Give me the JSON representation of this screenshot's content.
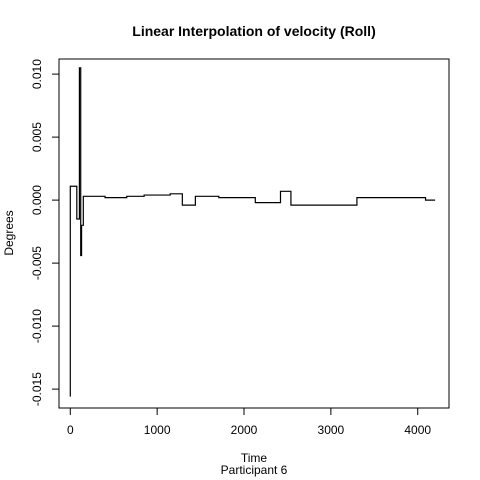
{
  "chart_data": {
    "type": "line",
    "title": "Linear Interpolation of velocity (Roll)",
    "xlabel": "Time",
    "sublabel": "Participant  6",
    "ylabel": "Degrees",
    "xlim": [
      -130,
      4360
    ],
    "ylim": [
      -0.0165,
      0.0112
    ],
    "x_ticks": [
      0,
      1000,
      2000,
      3000,
      4000
    ],
    "x_tick_labels": [
      "0",
      "1000",
      "2000",
      "3000",
      "4000"
    ],
    "y_ticks": [
      -0.015,
      -0.01,
      -0.005,
      0.0,
      0.005,
      0.01
    ],
    "y_tick_labels": [
      "-0.015",
      "-0.010",
      "-0.005",
      "0.000",
      "0.005",
      "0.010"
    ],
    "grid": false,
    "series": [
      {
        "style": "step",
        "color": "#000000",
        "x": [
          0,
          0,
          75,
          75,
          105,
          105,
          120,
          120,
          130,
          130,
          150,
          150,
          400,
          400,
          650,
          650,
          850,
          850,
          1150,
          1150,
          1290,
          1290,
          1440,
          1440,
          1710,
          1710,
          2130,
          2130,
          2420,
          2420,
          2540,
          2540,
          3300,
          3300,
          4090,
          4090,
          4200
        ],
        "y": [
          -0.0156,
          0.0011,
          0.0011,
          -0.0015,
          -0.0015,
          0.0105,
          0.0105,
          -0.0044,
          -0.0044,
          -0.002,
          -0.002,
          0.0003,
          0.0003,
          0.0002,
          0.0002,
          0.0003,
          0.0003,
          0.0004,
          0.0004,
          0.0005,
          0.0005,
          -0.0004,
          -0.0004,
          0.0003,
          0.0003,
          0.0002,
          0.0002,
          -0.0002,
          -0.0002,
          0.0007,
          0.0007,
          -0.0004,
          -0.0004,
          0.0002,
          0.0002,
          0.0,
          0.0
        ]
      }
    ]
  }
}
